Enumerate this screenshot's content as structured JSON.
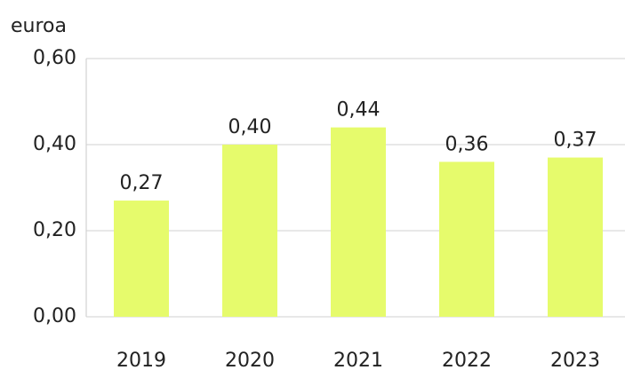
{
  "chart_data": {
    "type": "bar",
    "y_axis_label": "euroa",
    "categories": [
      "2019",
      "2020",
      "2021",
      "2022",
      "2023"
    ],
    "values": [
      0.27,
      0.4,
      0.44,
      0.36,
      0.37
    ],
    "value_labels": [
      "0,27",
      "0,40",
      "0,44",
      "0,36",
      "0,37"
    ],
    "color": "#e6fb6c",
    "ylim": [
      0,
      0.6
    ],
    "yticks": [
      {
        "value": 0,
        "label": "0,00"
      },
      {
        "value": 0.2,
        "label": "0,20"
      },
      {
        "value": 0.4,
        "label": "0,40"
      },
      {
        "value": 0.6,
        "label": "0,60"
      }
    ],
    "grid": true
  }
}
